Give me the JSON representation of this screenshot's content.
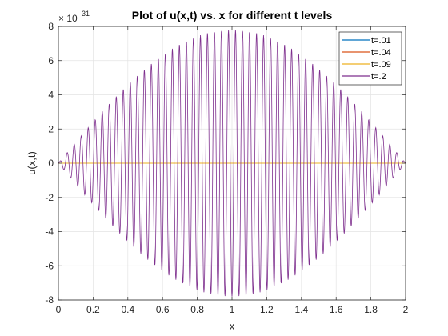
{
  "chart_data": {
    "type": "line",
    "title": "Plot of u(x,t) vs. x for different t levels",
    "xlabel": "x",
    "ylabel": "u(x,t)",
    "exponent_label": "× 10",
    "exponent_power": "31",
    "xlim": [
      0,
      2
    ],
    "ylim": [
      -8,
      8
    ],
    "x_ticks": [
      "0",
      "0.2",
      "0.4",
      "0.6",
      "0.8",
      "1",
      "1.2",
      "1.4",
      "1.6",
      "1.8",
      "2"
    ],
    "y_ticks": [
      "-8",
      "-6",
      "-4",
      "-2",
      "0",
      "2",
      "4",
      "6",
      "8"
    ],
    "grid": true,
    "legend_position": "top-right",
    "y_scale_factor": "1e31",
    "series": [
      {
        "name": "t=.01",
        "color": "#0072BD",
        "amplitude": 0
      },
      {
        "name": "t=.04",
        "color": "#D95319",
        "amplitude": 0
      },
      {
        "name": "t=.09",
        "color": "#EDB120",
        "amplitude": 0
      },
      {
        "name": "t=.2",
        "color": "#7E2F8E",
        "amplitude": 7.8,
        "oscillations": 99
      }
    ]
  }
}
